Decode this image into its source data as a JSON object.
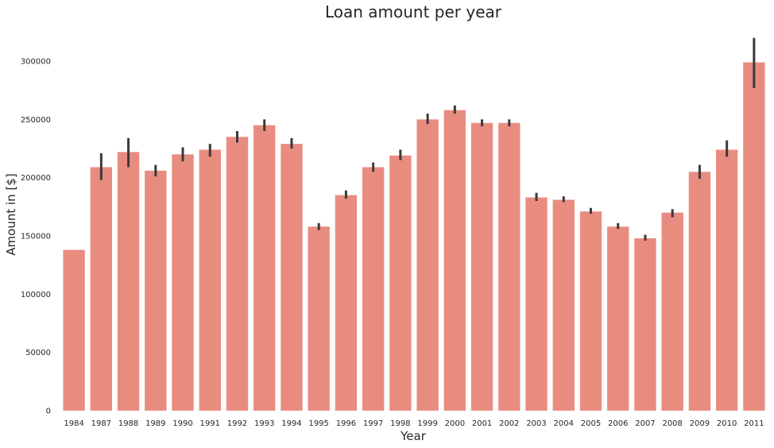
{
  "chart_data": {
    "type": "bar",
    "title": "Loan amount per year",
    "xlabel": "Year",
    "ylabel": "Amount in [$]",
    "categories": [
      "1984",
      "1987",
      "1988",
      "1989",
      "1990",
      "1991",
      "1992",
      "1993",
      "1994",
      "1995",
      "1996",
      "1997",
      "1998",
      "1999",
      "2000",
      "2001",
      "2002",
      "2003",
      "2004",
      "2005",
      "2006",
      "2007",
      "2008",
      "2009",
      "2010",
      "2011"
    ],
    "values": [
      138000,
      209000,
      222000,
      206000,
      220000,
      224000,
      235000,
      245000,
      229000,
      158000,
      185000,
      209000,
      219000,
      250000,
      258000,
      247000,
      247000,
      183000,
      181000,
      171000,
      158000,
      148000,
      170000,
      205000,
      224000,
      299000
    ],
    "error_low": [
      138000,
      198000,
      209000,
      201000,
      214000,
      218000,
      230000,
      240000,
      225000,
      155000,
      182000,
      205000,
      215000,
      246000,
      255000,
      244000,
      244000,
      180000,
      179000,
      169000,
      156000,
      146000,
      166000,
      199000,
      218000,
      277000
    ],
    "error_high": [
      138000,
      221000,
      234000,
      211000,
      226000,
      229000,
      240000,
      250000,
      234000,
      161000,
      189000,
      213000,
      224000,
      255000,
      262000,
      250000,
      250000,
      187000,
      184000,
      174000,
      161000,
      151000,
      173000,
      211000,
      232000,
      320000
    ],
    "ylim": [
      0,
      330000
    ],
    "yticks": [
      0,
      50000,
      100000,
      150000,
      200000,
      250000,
      300000
    ],
    "grid": false,
    "legend": "none",
    "colors": {
      "bar": "#e98c80",
      "errorbar": "#3a3a3a",
      "text": "#262626"
    }
  }
}
